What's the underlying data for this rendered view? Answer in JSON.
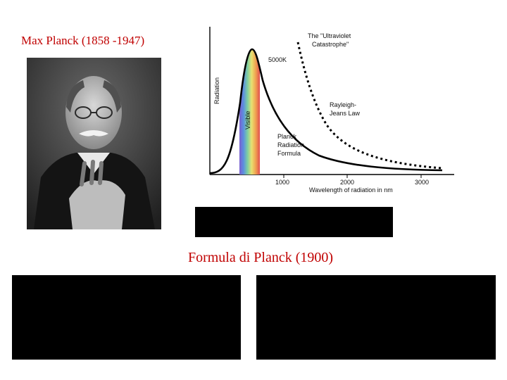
{
  "header": {
    "title": "Max Planck (1858 -1947)"
  },
  "portrait": {
    "subject": "Max Planck"
  },
  "diagram": {
    "axis_y_label": "Radiation",
    "axis_x_label": "Wavelength of radiation in nm",
    "ticks": [
      "1000",
      "2000",
      "3000"
    ],
    "visible_label": "Visible",
    "temperature_label": "5000K",
    "uv_label_line1": "The \"Ultraviolet",
    "uv_label_line2": "Catastrophe\"",
    "rj_label_line1": "Rayleigh-",
    "rj_label_line2": "Jeans Law",
    "planck_label_line1": "Planck",
    "planck_label_line2": "Radiation",
    "planck_label_line3": "Formula"
  },
  "main": {
    "subtitle": "Formula di Planck (1900)"
  },
  "colors": {
    "title": "#c00000",
    "redacted_box": "#000000"
  }
}
